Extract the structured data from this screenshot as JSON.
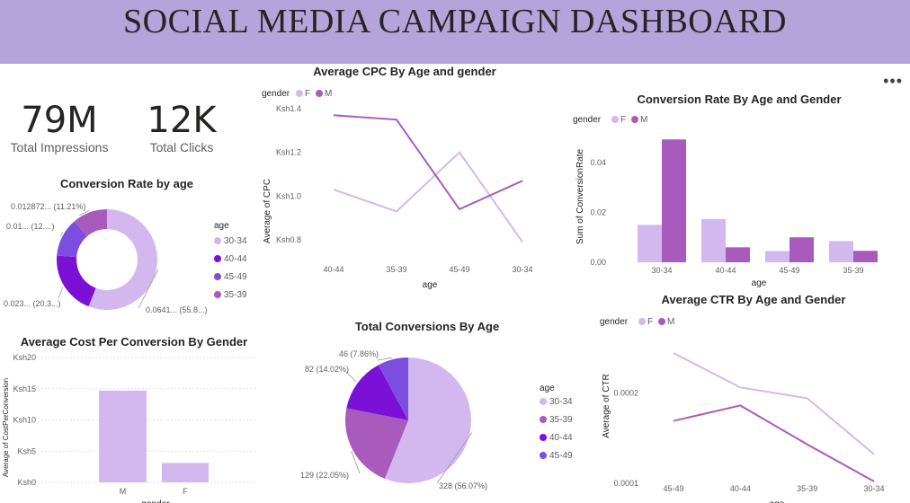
{
  "header": {
    "title": "SOCIAL MEDIA CAMPAIGN DASHBOARD"
  },
  "more_icon": "more-options-icon",
  "kpis": [
    {
      "value": "79M",
      "label": "Total Impressions"
    },
    {
      "value": "12K",
      "label": "Total Clicks"
    }
  ],
  "colors": {
    "F": "#d3b8ef",
    "M": "#a95bbd",
    "30-34": "#d3b8ef",
    "35-39": "#a95bbd",
    "40-44": "#7b10d6",
    "45-49": "#7c4ee0",
    "header": "#b4a4dc"
  },
  "chart_data": [
    {
      "type": "pie",
      "title": "Conversion Rate by age",
      "legend_title": "age",
      "legend_position": "right",
      "donut": true,
      "slices": [
        {
          "label": "30-34",
          "value": 0.0641,
          "display": "0.0641... (55.8...)"
        },
        {
          "label": "40-44",
          "value": 0.0233,
          "display": "0.023... (20.3...)"
        },
        {
          "label": "45-49",
          "value": 0.0143,
          "display": "0.01... (12....)"
        },
        {
          "label": "35-39",
          "value": 0.012872,
          "display": "0.012872... (11.21%)"
        }
      ]
    },
    {
      "type": "line",
      "title": "Average CPC By Age and gender",
      "legend_title": "gender",
      "legend_position": "top-left",
      "xlabel": "age",
      "ylabel": "Average of CPC",
      "categories": [
        "40-44",
        "35-39",
        "45-49",
        "30-34"
      ],
      "yticks": [
        "Ksh0.8",
        "Ksh1.0",
        "Ksh1.2",
        "Ksh1.4"
      ],
      "ylim": [
        0.8,
        1.4
      ],
      "series": [
        {
          "name": "F",
          "values": [
            1.03,
            0.93,
            1.2,
            0.79
          ]
        },
        {
          "name": "M",
          "values": [
            1.37,
            1.35,
            0.94,
            1.07
          ]
        }
      ]
    },
    {
      "type": "bar",
      "title": "Conversion Rate By Age and Gender",
      "legend_title": "gender",
      "legend_position": "top-left",
      "xlabel": "age",
      "ylabel": "Sum of ConversionRate",
      "categories": [
        "30-34",
        "40-44",
        "45-49",
        "35-39"
      ],
      "yticks": [
        "0.00",
        "0.02",
        "0.04"
      ],
      "ylim": [
        0,
        0.05
      ],
      "series": [
        {
          "name": "F",
          "values": [
            0.015,
            0.0173,
            0.0045,
            0.0085
          ]
        },
        {
          "name": "M",
          "values": [
            0.0492,
            0.006,
            0.01,
            0.0046
          ]
        }
      ]
    },
    {
      "type": "bar",
      "title": "Average Cost Per Conversion By Gender",
      "xlabel": "gender",
      "ylabel": "Average of CostPerConversion",
      "categories": [
        "M",
        "F"
      ],
      "yticks": [
        "Ksh0",
        "Ksh5",
        "Ksh10",
        "Ksh15",
        "Ksh20"
      ],
      "ylim": [
        0,
        20
      ],
      "values": [
        14.7,
        3.1
      ]
    },
    {
      "type": "pie",
      "title": "Total Conversions By Age",
      "legend_title": "age",
      "legend_position": "right",
      "donut": false,
      "slices": [
        {
          "label": "30-34",
          "value": 328,
          "display": "328 (56.07%)"
        },
        {
          "label": "35-39",
          "value": 129,
          "display": "129 (22.05%)"
        },
        {
          "label": "40-44",
          "value": 82,
          "display": "82 (14.02%)"
        },
        {
          "label": "45-49",
          "value": 46,
          "display": "46 (7.86%)"
        }
      ]
    },
    {
      "type": "line",
      "title": "Average CTR By Age and Gender",
      "legend_title": "gender",
      "legend_position": "top-left",
      "xlabel": "age",
      "ylabel": "Average of CTR",
      "categories": [
        "45-49",
        "40-44",
        "35-39",
        "30-34"
      ],
      "yticks": [
        "0.0001",
        "0.0002"
      ],
      "ylim": [
        0.0001,
        0.00026
      ],
      "series": [
        {
          "name": "F",
          "values": [
            0.000244,
            0.000206,
            0.000194,
            0.000132
          ]
        },
        {
          "name": "M",
          "values": [
            0.000169,
            0.000186,
            0.000143,
            0.000102
          ]
        }
      ]
    }
  ]
}
